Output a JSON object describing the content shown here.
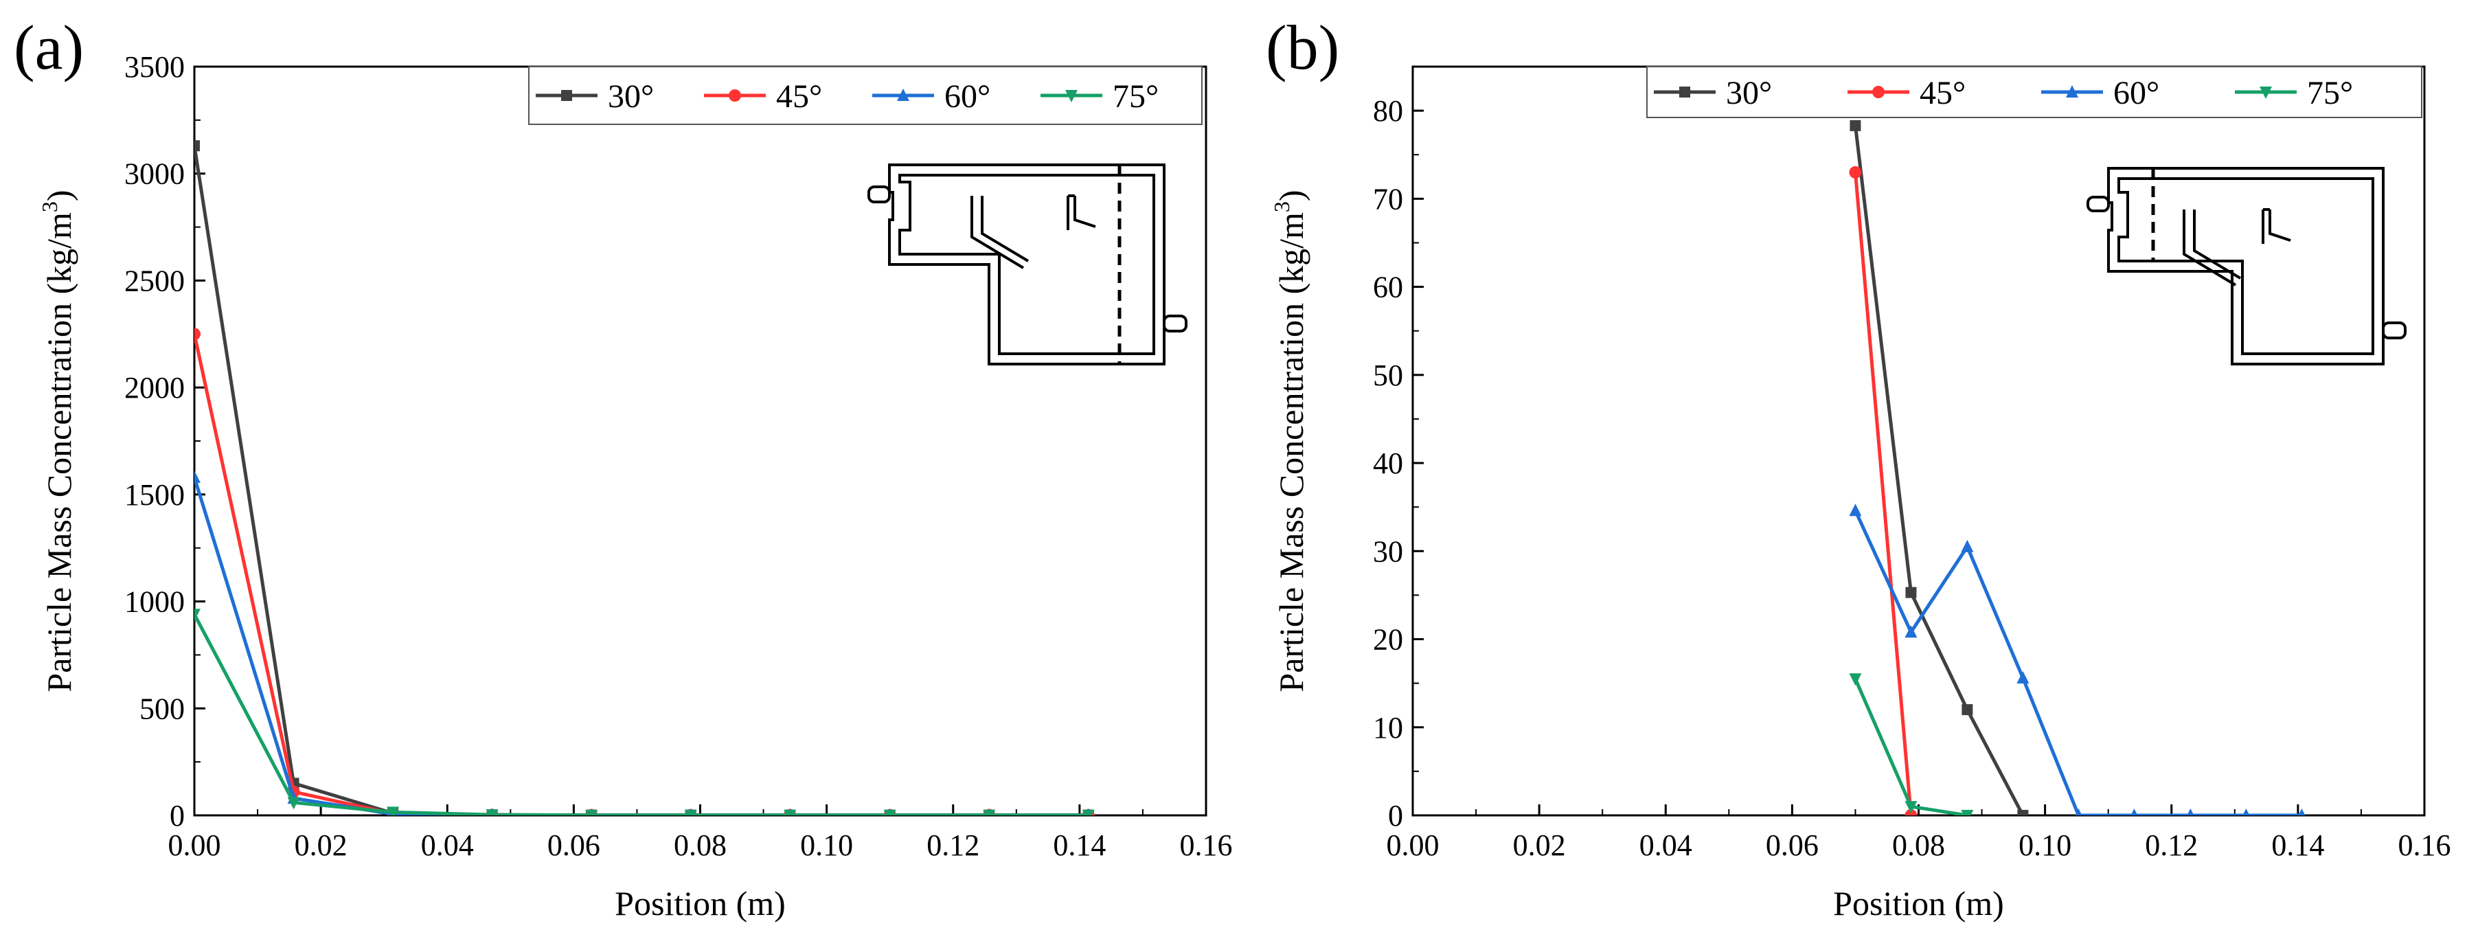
{
  "chart_data": [
    {
      "panel_label": "(a)",
      "type": "line",
      "title": "",
      "xlabel": "Position (m)",
      "ylabel": "Particle Mass Concentration (kg/m³)",
      "ylabel_main": "Particle Mass Concentration (kg/m",
      "ylabel_sup": "3",
      "ylabel_tail": ")",
      "xlim": [
        0,
        0.16
      ],
      "ylim": [
        0,
        3500
      ],
      "xticks": [
        0,
        0.02,
        0.04,
        0.06,
        0.08,
        0.1,
        0.12,
        0.14,
        0.16
      ],
      "xtick_labels": [
        "0.00",
        "0.02",
        "0.04",
        "0.06",
        "0.08",
        "0.10",
        "0.12",
        "0.14",
        "0.16"
      ],
      "yticks": [
        0,
        500,
        1000,
        1500,
        2000,
        2500,
        3000,
        3500
      ],
      "ytick_labels": [
        "0",
        "500",
        "1000",
        "1500",
        "2000",
        "2500",
        "3000",
        "3500"
      ],
      "legend_position": "top-right",
      "inset": "schematic of chamber with dashed sampling line near outlet (right)",
      "series": [
        {
          "name": "30°",
          "color": "#404040",
          "marker": "square",
          "x": [
            0,
            0.0157,
            0.0314,
            0.0471,
            0.0628,
            0.0785,
            0.0942,
            0.11,
            0.1257,
            0.1414
          ],
          "y": [
            3130,
            150,
            10,
            2,
            1,
            1,
            1,
            1,
            1,
            1
          ]
        },
        {
          "name": "45°",
          "color": "#ff3333",
          "marker": "circle",
          "x": [
            0,
            0.0157,
            0.0314,
            0.0471,
            0.0628,
            0.0785,
            0.0942,
            0.11,
            0.1257,
            0.1414
          ],
          "y": [
            2250,
            110,
            8,
            2,
            1,
            1,
            1,
            1,
            1,
            1
          ]
        },
        {
          "name": "60°",
          "color": "#1f6fd6",
          "marker": "triangle-up",
          "x": [
            0,
            0.0157,
            0.0314,
            0.0471,
            0.0628,
            0.0785,
            0.0942,
            0.11,
            0.1257,
            0.1414
          ],
          "y": [
            1580,
            80,
            6,
            2,
            1,
            1,
            1,
            1,
            1,
            1
          ]
        },
        {
          "name": "75°",
          "color": "#16a067",
          "marker": "triangle-down",
          "x": [
            0,
            0.0157,
            0.0314,
            0.0471,
            0.0628,
            0.0785,
            0.0942,
            0.11,
            0.1257,
            0.1414
          ],
          "y": [
            940,
            60,
            15,
            3,
            1,
            1,
            1,
            1,
            1,
            1
          ]
        }
      ]
    },
    {
      "panel_label": "(b)",
      "type": "line",
      "title": "",
      "xlabel": "Position (m)",
      "ylabel": "Particle Mass Concentration (kg/m³)",
      "ylabel_main": "Particle Mass Concentration (kg/m",
      "ylabel_sup": "3",
      "ylabel_tail": ")",
      "xlim": [
        0,
        0.16
      ],
      "ylim": [
        0,
        85
      ],
      "xticks": [
        0,
        0.02,
        0.04,
        0.06,
        0.08,
        0.1,
        0.12,
        0.14,
        0.16
      ],
      "xtick_labels": [
        "0.00",
        "0.02",
        "0.04",
        "0.06",
        "0.08",
        "0.10",
        "0.12",
        "0.14",
        "0.16"
      ],
      "yticks": [
        0,
        10,
        20,
        30,
        40,
        50,
        60,
        70,
        80
      ],
      "ytick_labels": [
        "0",
        "10",
        "20",
        "30",
        "40",
        "50",
        "60",
        "70",
        "80"
      ],
      "legend_position": "top",
      "inset": "schematic of chamber with dashed sampling line near inlet (left)",
      "series": [
        {
          "name": "30°",
          "color": "#404040",
          "marker": "square",
          "x": [
            0.07,
            0.0788,
            0.0877,
            0.0965
          ],
          "y": [
            78.3,
            25.3,
            12.0,
            0
          ]
        },
        {
          "name": "45°",
          "color": "#ff3333",
          "marker": "circle",
          "x": [
            0.07,
            0.0788
          ],
          "y": [
            73.0,
            0
          ]
        },
        {
          "name": "60°",
          "color": "#1f6fd6",
          "marker": "triangle-up",
          "x": [
            0.07,
            0.0788,
            0.0877,
            0.0965,
            0.1053,
            0.1141,
            0.123,
            0.1318,
            0.1406
          ],
          "y": [
            34.6,
            20.8,
            30.5,
            15.6,
            0,
            0,
            0,
            0,
            0
          ]
        },
        {
          "name": "75°",
          "color": "#16a067",
          "marker": "triangle-down",
          "x": [
            0.07,
            0.0788,
            0.0877
          ],
          "y": [
            15.5,
            1.0,
            0
          ]
        }
      ]
    }
  ]
}
